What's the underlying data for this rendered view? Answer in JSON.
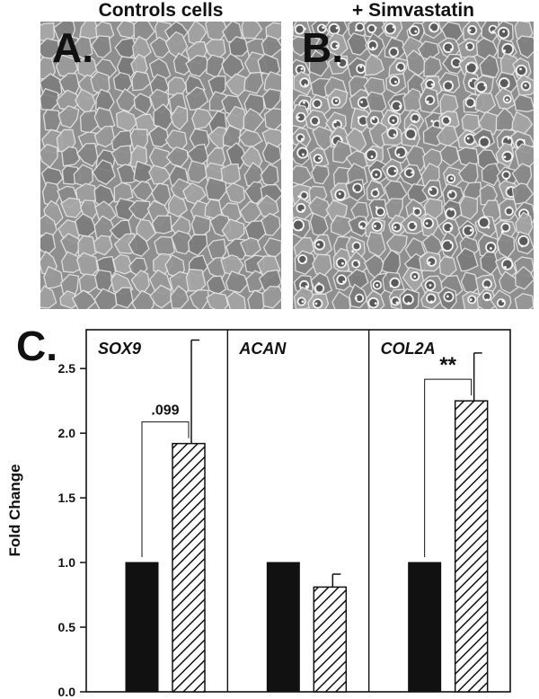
{
  "panels": {
    "a": {
      "label": "A.",
      "title": "Controls cells"
    },
    "b": {
      "label": "B.",
      "title": "+ Simvastatin"
    },
    "c": {
      "label": "C."
    }
  },
  "colors": {
    "control_bar": "#111111",
    "simvastatin_bar": "hatched",
    "micrograph_bg": "#8d8d8d"
  },
  "chart_data": {
    "type": "bar",
    "ylabel": "Fold Change",
    "ylim": [
      0,
      2.8
    ],
    "yticks": [
      0.0,
      0.5,
      1.0,
      1.5,
      2.0,
      2.5
    ],
    "ytick_labels": [
      "0.0",
      "0.5",
      "1.0",
      "1.5",
      "2.0",
      "2.5"
    ],
    "groups": [
      {
        "gene": "SOX9",
        "control": 1.0,
        "simvastatin": 1.92,
        "error": 0.8,
        "significance": ".099"
      },
      {
        "gene": "ACAN",
        "control": 1.0,
        "simvastatin": 0.81,
        "error": 0.1,
        "significance": ""
      },
      {
        "gene": "COL2A",
        "control": 1.0,
        "simvastatin": 2.25,
        "error": 0.37,
        "significance": "**"
      }
    ]
  }
}
